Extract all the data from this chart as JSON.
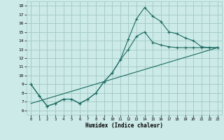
{
  "xlabel": "Humidex (Indice chaleur)",
  "background_color": "#cceae8",
  "grid_color": "#a0c8c4",
  "line_color": "#1a6b60",
  "xlim": [
    -0.5,
    23.5
  ],
  "ylim": [
    5.5,
    18.5
  ],
  "xticks": [
    0,
    1,
    2,
    3,
    4,
    5,
    6,
    7,
    8,
    9,
    10,
    11,
    12,
    13,
    14,
    15,
    16,
    17,
    18,
    19,
    20,
    21,
    22,
    23
  ],
  "yticks": [
    6,
    7,
    8,
    9,
    10,
    11,
    12,
    13,
    14,
    15,
    16,
    17,
    18
  ],
  "line1_x": [
    0,
    1,
    2,
    3,
    4,
    5,
    6,
    7,
    8,
    9,
    10,
    11,
    12,
    13,
    14,
    15,
    16,
    17,
    18,
    19,
    20,
    21,
    22,
    23
  ],
  "line1_y": [
    9.0,
    7.7,
    6.5,
    6.8,
    7.3,
    7.3,
    6.8,
    7.3,
    8.0,
    9.3,
    10.3,
    11.8,
    14.2,
    16.5,
    17.8,
    16.8,
    16.2,
    15.0,
    14.8,
    14.3,
    14.0,
    13.3,
    13.2,
    13.2
  ],
  "line2_x": [
    0,
    1,
    2,
    3,
    4,
    5,
    6,
    7,
    8,
    9,
    10,
    11,
    12,
    13,
    14,
    15,
    16,
    17,
    18,
    19,
    20,
    21,
    22,
    23
  ],
  "line2_y": [
    9.0,
    7.7,
    6.5,
    6.8,
    7.3,
    7.3,
    6.8,
    7.3,
    8.0,
    9.3,
    10.3,
    11.8,
    13.0,
    14.5,
    15.0,
    13.8,
    13.5,
    13.3,
    13.2,
    13.2,
    13.2,
    13.2,
    13.2,
    13.2
  ],
  "line3_x": [
    0,
    23
  ],
  "line3_y": [
    6.8,
    13.2
  ]
}
